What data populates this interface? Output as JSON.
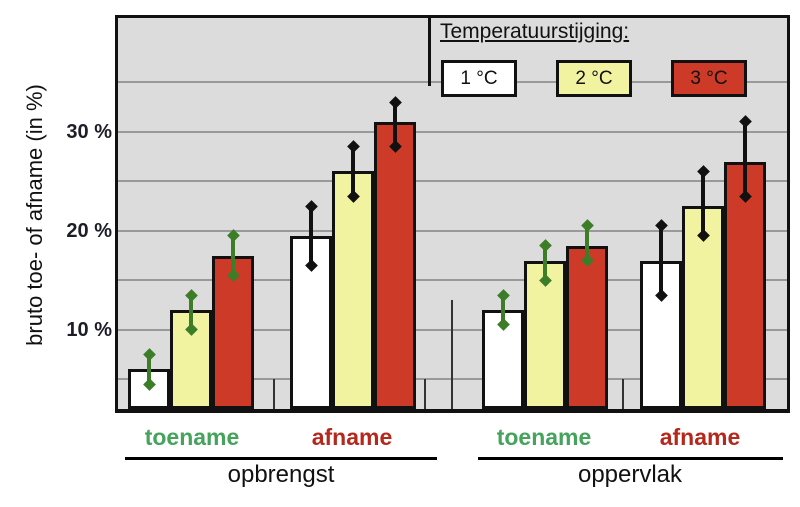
{
  "chart_data": {
    "type": "bar",
    "ylabel": "bruto toe- of afname (in %)",
    "y_unit": "%",
    "ylim": [
      2,
      41.5
    ],
    "gridline_values": [
      5,
      10,
      15,
      20,
      25,
      30,
      35
    ],
    "grid": "horizontal",
    "yticks": [
      {
        "value": 30,
        "label": "30 %"
      },
      {
        "value": 20,
        "label": "20 %"
      },
      {
        "value": 10,
        "label": "10 %"
      }
    ],
    "legend": {
      "title": "Temperatuurstijging:",
      "position": "top-right",
      "entries": [
        {
          "label": "1 °C",
          "fill": "#ffffff"
        },
        {
          "label": "2 °C",
          "fill": "#f2f3a1"
        },
        {
          "label": "3 °C",
          "fill": "#cd3a28"
        }
      ]
    },
    "categories": [
      {
        "label": "opbrengst"
      },
      {
        "label": "oppervlak"
      }
    ],
    "groups": [
      {
        "category": "opbrengst",
        "subcategory": "toename",
        "label_color": "#45a35c",
        "errorbar_color": "#3e7d28",
        "bars": [
          {
            "series": "1 °C",
            "value": 6,
            "err_low": 4.5,
            "err_high": 7.5
          },
          {
            "series": "2 °C",
            "value": 12,
            "err_low": 10,
            "err_high": 13.5
          },
          {
            "series": "3 °C",
            "value": 17.5,
            "err_low": 15.5,
            "err_high": 19.5
          }
        ]
      },
      {
        "category": "opbrengst",
        "subcategory": "afname",
        "label_color": "#b6271c",
        "errorbar_color": "#111111",
        "bars": [
          {
            "series": "1 °C",
            "value": 19.5,
            "err_low": 16.5,
            "err_high": 22.5
          },
          {
            "series": "2 °C",
            "value": 26,
            "err_low": 23.5,
            "err_high": 28.5
          },
          {
            "series": "3 °C",
            "value": 31,
            "err_low": 28.5,
            "err_high": 33
          }
        ]
      },
      {
        "category": "oppervlak",
        "subcategory": "toename",
        "label_color": "#45a35c",
        "errorbar_color": "#3e7d28",
        "bars": [
          {
            "series": "1 °C",
            "value": 12,
            "err_low": 10.5,
            "err_high": 13.5
          },
          {
            "series": "2 °C",
            "value": 17,
            "err_low": 15,
            "err_high": 18.5
          },
          {
            "series": "3 °C",
            "value": 18.5,
            "err_low": 17,
            "err_high": 20.5
          }
        ]
      },
      {
        "category": "oppervlak",
        "subcategory": "afname",
        "label_color": "#b6271c",
        "errorbar_color": "#111111",
        "bars": [
          {
            "series": "1 °C",
            "value": 17,
            "err_low": 13.5,
            "err_high": 20.5
          },
          {
            "series": "2 °C",
            "value": 22.5,
            "err_low": 19.5,
            "err_high": 26
          },
          {
            "series": "3 °C",
            "value": 27,
            "err_low": 23.5,
            "err_high": 31
          }
        ]
      }
    ],
    "colors": {
      "plot_background": "#dcdcdc",
      "gridline": "#999999",
      "bar_border": "#111111"
    }
  }
}
